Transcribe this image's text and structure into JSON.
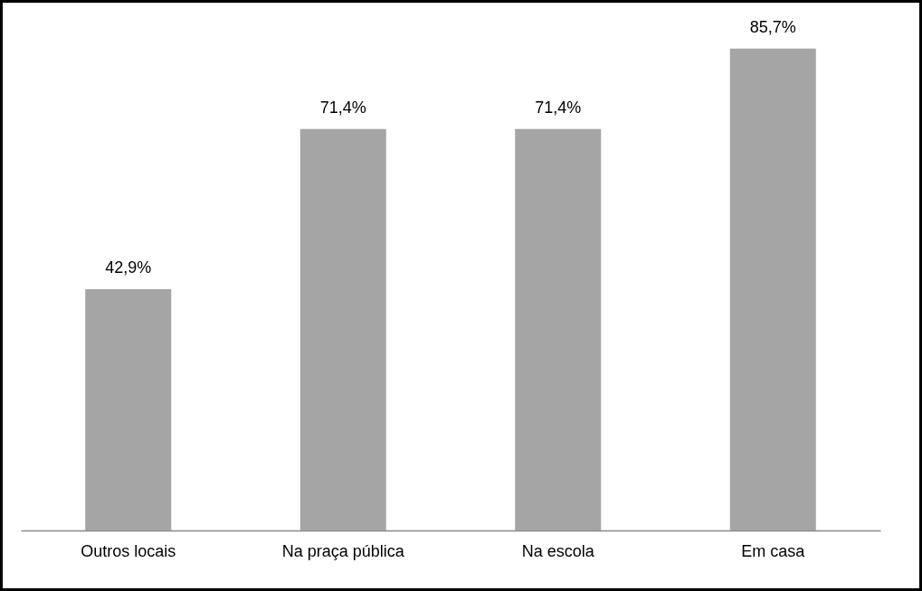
{
  "chart_data": {
    "type": "bar",
    "categories": [
      "Outros locais",
      "Na praça pública",
      "Na escola",
      "Em casa"
    ],
    "values": [
      42.9,
      71.4,
      71.4,
      85.7
    ],
    "value_labels": [
      "42,9%",
      "71,4%",
      "71,4%",
      "85,7%"
    ],
    "color": "#a5a5a5"
  }
}
